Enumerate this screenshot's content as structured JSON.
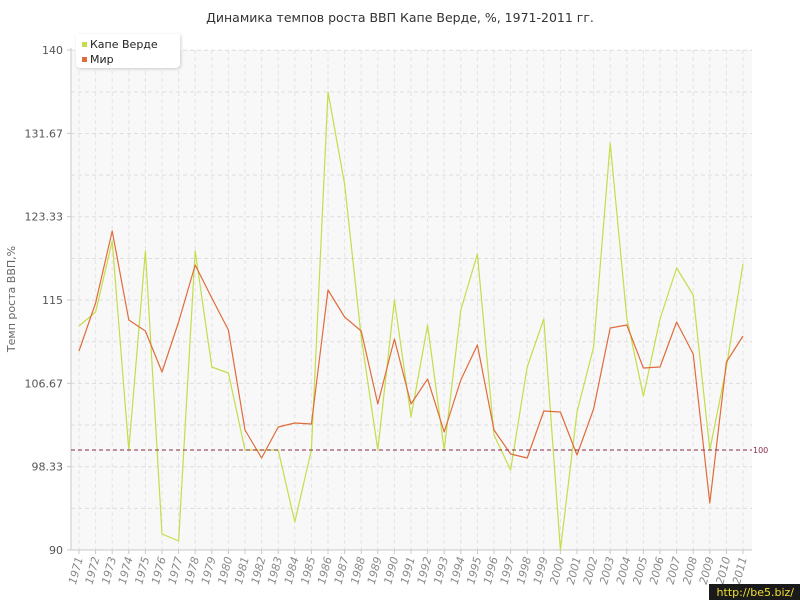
{
  "chart_data": {
    "type": "line",
    "title": "Динамика темпов роста ВВП Капе Верде, %, 1971-2011 гг.",
    "ylabel": "Темп роста ВВП,%",
    "xlabel": "",
    "ylim": [
      90,
      140
    ],
    "yticks": [
      "90",
      "98.33",
      "106.67",
      "115",
      "123.33",
      "131.67",
      "140"
    ],
    "x": [
      "1971",
      "1972",
      "1973",
      "1974",
      "1975",
      "1976",
      "1977",
      "1978",
      "1979",
      "1980",
      "1981",
      "1982",
      "1983",
      "1984",
      "1985",
      "1986",
      "1987",
      "1988",
      "1989",
      "1990",
      "1991",
      "1992",
      "1993",
      "1994",
      "1995",
      "1996",
      "1997",
      "1998",
      "1999",
      "2000",
      "2001",
      "2002",
      "2003",
      "2004",
      "2005",
      "2006",
      "2007",
      "2008",
      "2009",
      "2010",
      "2011"
    ],
    "series": [
      {
        "name": "Капе Верде",
        "color": "#c3de4a",
        "values": [
          112.4,
          113.8,
          120.9,
          100.0,
          119.9,
          91.6,
          90.9,
          119.9,
          108.3,
          107.7,
          100.0,
          100.0,
          100.0,
          92.8,
          100.0,
          135.8,
          126.6,
          111.3,
          100.0,
          115.0,
          103.3,
          112.5,
          100.0,
          114.0,
          119.6,
          101.5,
          98.0,
          108.3,
          113.1,
          90.0,
          103.8,
          110.3,
          130.7,
          113.2,
          105.4,
          113.1,
          118.2,
          115.5,
          100.0,
          108.3,
          118.6
        ]
      },
      {
        "name": "Мир",
        "color": "#e06c3c",
        "values": [
          109.9,
          114.7,
          121.9,
          113.0,
          111.9,
          107.8,
          112.8,
          118.5,
          115.2,
          112.0,
          102.0,
          99.2,
          102.3,
          102.7,
          102.6,
          116.0,
          113.3,
          111.9,
          104.6,
          111.1,
          104.6,
          107.1,
          101.8,
          107.0,
          110.5,
          102.0,
          99.6,
          99.2,
          103.9,
          103.8,
          99.5,
          104.1,
          112.2,
          112.5,
          108.2,
          108.3,
          112.8,
          109.6,
          94.7,
          108.8,
          111.4
        ]
      }
    ],
    "reference_line": {
      "value": 100,
      "label": "100",
      "color": "#8b2a45"
    },
    "legend_position": "top-left",
    "grid": true
  },
  "watermark": {
    "text": "http://be5.biz/",
    "color": "#f2df2e"
  }
}
